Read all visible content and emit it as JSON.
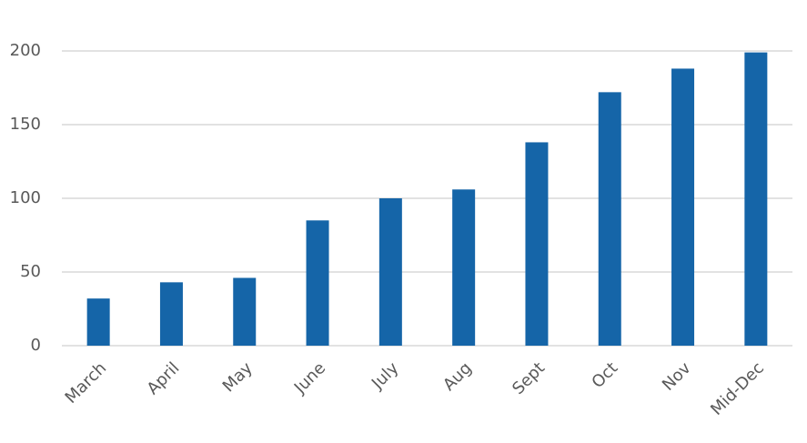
{
  "chart_data": {
    "type": "bar",
    "categories": [
      "March",
      "April",
      "May",
      "June",
      "July",
      "Aug",
      "Sept",
      "Oct",
      "Nov",
      "Mid-Dec"
    ],
    "values": [
      32,
      43,
      46,
      85,
      100,
      106,
      138,
      172,
      188,
      199
    ],
    "color": "#1565a8",
    "ylim": [
      0,
      200
    ],
    "yticks": [
      0,
      50,
      100,
      150,
      200
    ],
    "grid": true
  }
}
